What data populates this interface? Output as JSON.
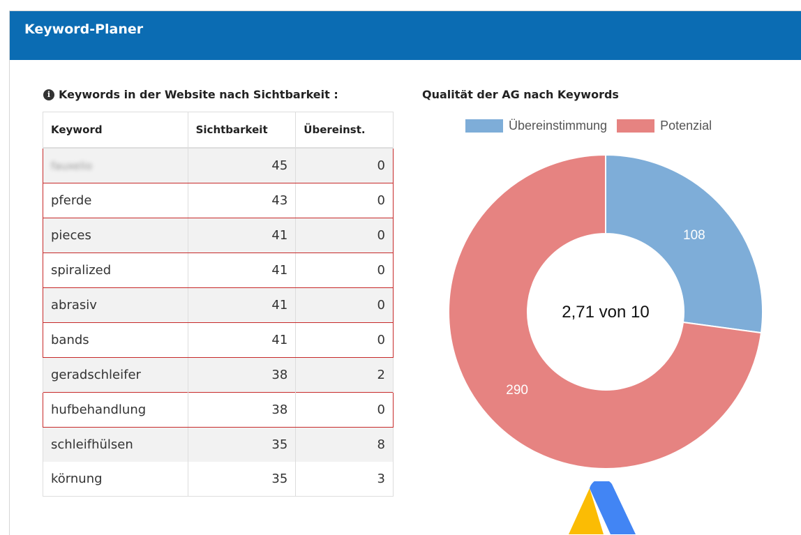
{
  "panel": {
    "title": "Keyword-Planer"
  },
  "keywords_section": {
    "title": "Keywords in der Website nach Sichtbarkeit :",
    "info_icon": "info-circle-icon",
    "columns": [
      "Keyword",
      "Sichtbarkeit",
      "Übereinst."
    ],
    "rows": [
      {
        "keyword": "fauxelio",
        "visibility": "45",
        "match": "0",
        "blurred": true
      },
      {
        "keyword": "pferde",
        "visibility": "43",
        "match": "0"
      },
      {
        "keyword": "pieces",
        "visibility": "41",
        "match": "0"
      },
      {
        "keyword": "spiralized",
        "visibility": "41",
        "match": "0"
      },
      {
        "keyword": "abrasiv",
        "visibility": "41",
        "match": "0"
      },
      {
        "keyword": "bands",
        "visibility": "41",
        "match": "0"
      },
      {
        "keyword": "geradschleifer",
        "visibility": "38",
        "match": "2"
      },
      {
        "keyword": "hufbehandlung",
        "visibility": "38",
        "match": "0"
      },
      {
        "keyword": "schleifhülsen",
        "visibility": "35",
        "match": "8"
      },
      {
        "keyword": "körnung",
        "visibility": "35",
        "match": "3"
      }
    ]
  },
  "quality_section": {
    "title": "Qualität der AG nach Keywords"
  },
  "chart_data": {
    "type": "pie",
    "donut": true,
    "center_label": "2,71 von 10",
    "legend_position": "top",
    "series": [
      {
        "name": "Übereinstimmung",
        "value": 108,
        "color": "#7eadd8"
      },
      {
        "name": "Potenzial",
        "value": 290,
        "color": "#e68381"
      }
    ]
  },
  "logo": "google-ads-logo",
  "colors": {
    "header": "#0b6cb3",
    "flag_border": "#c62828"
  }
}
